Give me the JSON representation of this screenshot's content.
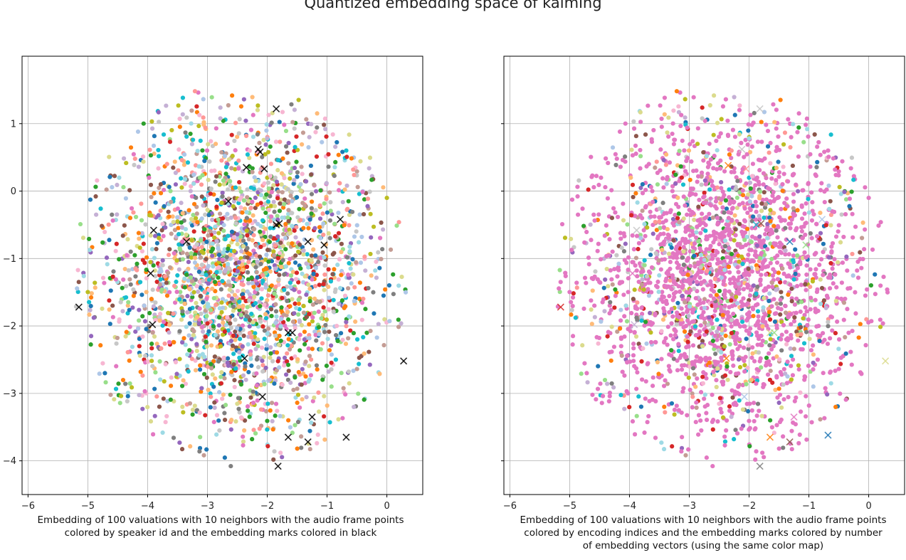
{
  "suptitle": "Quantized embedding space of kaiming",
  "chart_data": [
    {
      "type": "scatter",
      "panel": "left",
      "caption": "Embedding of 100 valuations with 10 neighbors with the audio frame points colored by speaker id and the embedding marks colored in black",
      "xlim": [
        -6.1,
        0.6
      ],
      "ylim": [
        -4.5,
        2.0
      ],
      "xticks": [
        -6,
        -5,
        -4,
        -3,
        -2,
        -1,
        0
      ],
      "yticks": [
        -4,
        -3,
        -2,
        -1,
        0,
        1
      ],
      "grid": true,
      "point_color_mode": "speaker_id",
      "mark_color": "#000000",
      "embedding_marks": [
        [
          -1.85,
          1.22
        ],
        [
          -2.15,
          0.62
        ],
        [
          -2.12,
          0.58
        ],
        [
          -2.35,
          0.35
        ],
        [
          -2.05,
          0.33
        ],
        [
          -2.65,
          -0.15
        ],
        [
          -1.85,
          -0.5
        ],
        [
          -1.8,
          -0.48
        ],
        [
          -0.78,
          -0.42
        ],
        [
          -1.32,
          -0.75
        ],
        [
          -3.35,
          -0.75
        ],
        [
          -3.9,
          -0.58
        ],
        [
          -1.05,
          -0.8
        ],
        [
          -3.95,
          -1.22
        ],
        [
          -3.92,
          -1.98
        ],
        [
          -5.15,
          -1.72
        ],
        [
          -1.65,
          -2.1
        ],
        [
          -1.58,
          -2.1
        ],
        [
          -2.38,
          -2.48
        ],
        [
          0.28,
          -2.52
        ],
        [
          -2.08,
          -3.05
        ],
        [
          -1.25,
          -3.35
        ],
        [
          -1.65,
          -3.65
        ],
        [
          -1.32,
          -3.72
        ],
        [
          -0.68,
          -3.65
        ],
        [
          -1.82,
          -4.08
        ]
      ]
    },
    {
      "type": "scatter",
      "panel": "right",
      "caption": "Embedding of 100 valuations with 10 neighbors with the audio frame points colored by encoding indices and the embedding marks colored by number of embedding vectors (using the same color map)",
      "xlim": [
        -6.1,
        0.6
      ],
      "ylim": [
        -4.5,
        2.0
      ],
      "xticks": [
        -6,
        -5,
        -4,
        -3,
        -2,
        -1,
        0
      ],
      "yticks": [
        -4,
        -3,
        -2,
        -1,
        0,
        1
      ],
      "grid": true,
      "point_color_mode": "encoding_index",
      "embedding_marks": [
        {
          "x": -1.82,
          "y": 1.22,
          "color": "#c7c7c7"
        },
        {
          "x": -2.12,
          "y": 0.62,
          "color": "#c7c7c7"
        },
        {
          "x": -2.35,
          "y": 0.38,
          "color": "#ff7f0e"
        },
        {
          "x": -2.05,
          "y": 0.33,
          "color": "#ff9896"
        },
        {
          "x": -2.65,
          "y": -0.15,
          "color": "#c5b0d5"
        },
        {
          "x": -1.88,
          "y": -0.5,
          "color": "#17becf"
        },
        {
          "x": -1.8,
          "y": -0.48,
          "color": "#8c564b"
        },
        {
          "x": -0.78,
          "y": -0.42,
          "color": "#aec7e8"
        },
        {
          "x": -1.32,
          "y": -0.75,
          "color": "#1f77b4"
        },
        {
          "x": -3.35,
          "y": -0.75,
          "color": "#c5b0d5"
        },
        {
          "x": -3.88,
          "y": -0.58,
          "color": "#c7c7c7"
        },
        {
          "x": -1.05,
          "y": -0.8,
          "color": "#98df8a"
        },
        {
          "x": -3.95,
          "y": -1.22,
          "color": "#e377c2"
        },
        {
          "x": -3.92,
          "y": -1.98,
          "color": "#c5b0d5"
        },
        {
          "x": -5.15,
          "y": -1.72,
          "color": "#d62728"
        },
        {
          "x": -1.65,
          "y": -2.1,
          "color": "#dbdb8d"
        },
        {
          "x": -1.58,
          "y": -2.1,
          "color": "#98df8a"
        },
        {
          "x": -2.38,
          "y": -2.48,
          "color": "#ff7f0e"
        },
        {
          "x": 0.28,
          "y": -2.52,
          "color": "#dbdb8d"
        },
        {
          "x": -2.08,
          "y": -3.05,
          "color": "#aec7e8"
        },
        {
          "x": -1.25,
          "y": -3.35,
          "color": "#e377c2"
        },
        {
          "x": -1.65,
          "y": -3.65,
          "color": "#ff7f0e"
        },
        {
          "x": -1.32,
          "y": -3.72,
          "color": "#8c564b"
        },
        {
          "x": -0.68,
          "y": -3.62,
          "color": "#1f77b4"
        },
        {
          "x": -1.82,
          "y": -4.08,
          "color": "#7f7f7f"
        }
      ]
    }
  ]
}
